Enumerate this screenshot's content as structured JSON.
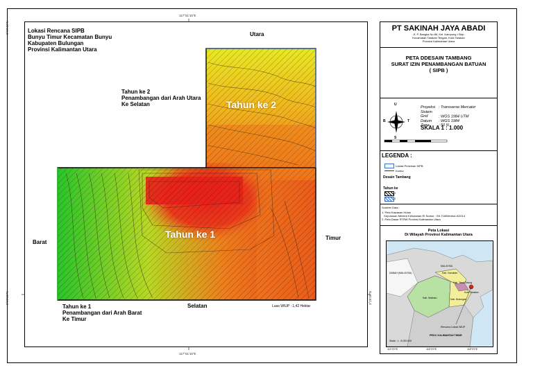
{
  "map": {
    "title_block": {
      "lines": [
        "Lokasi Rencana SIPB",
        "Bunyu Timur Kecamatan Bunyu",
        "Kabupaten Bulungan",
        "Provinsi Kalimantan Utara"
      ]
    },
    "year2": {
      "lines": [
        "Tahun ke 2",
        "Penambangan dari Arah Utara",
        "Ke Selatan"
      ],
      "big_label": "Tahun ke 2"
    },
    "year1": {
      "lines": [
        "Tahun ke 1",
        "Penambangan dari Arah Barat",
        "Ke Timur"
      ],
      "big_label": "Tahun ke 1"
    },
    "directions": {
      "north": "Utara",
      "south": "Selatan",
      "west": "Barat",
      "east": "Timur"
    },
    "area_note": "Luas WIUP : 1,42 Hektar",
    "coords": {
      "top": "117°51'15\"E",
      "bottom": "117°51'15\"E",
      "left_top": "3°29'40\"N",
      "left_bottom": "3°29'35\"N",
      "right_bottom": "3°29'35\"N"
    },
    "colors": {
      "red": "#e8211b",
      "orange": "#ef7d1c",
      "yellow": "#e8e824",
      "green": "#2bc42b",
      "boundary": "#2e6fd8"
    }
  },
  "legend_panel": {
    "company": "PT SAKINAH JAYA ABADI",
    "address": [
      "Jl. P. Bangka No.86, Kel. Kampung I Skip",
      "Kecamatan Tarakan Tengah, Kota Tarakan",
      "Provinsi Kalimantan Utara"
    ],
    "map_title": [
      "PETA DDESAIN TAMBANG",
      "SURAT IZIN PENAMBANGAN BATUAN",
      "( SIPB )"
    ],
    "projection": [
      {
        "k": "Proyeksi",
        "v": ": Transverse Mercator"
      },
      {
        "k": "Sistem Grid",
        "v": ": WGS 1984 UTM"
      },
      {
        "k": "Datum",
        "v": ": WGS 1984"
      },
      {
        "k": "Zona",
        "v": ": 50 N"
      }
    ],
    "scale": "SKALA  1 : 1.000",
    "compass": {
      "n": "U",
      "s": "S",
      "w": "B",
      "e": "T"
    },
    "legend_title": "LEGENDA  :",
    "legend_items": [
      "Lokasi Perizinan SIPB",
      "Kontur"
    ],
    "design_title": "Desain Tambang",
    "year_title": "Tahun ke",
    "year_items": [
      "1",
      "2"
    ],
    "source_title": "Sumber Data :",
    "sources": [
      "1. Peta Kawasan Hutan",
      "   Keputusan Menteri Kehutanan RI Nomor : SK.718/Menhut-II/2014",
      "2. Peta Dasar RTRW Provinsi Kalimantan Utara"
    ],
    "inset": {
      "title": [
        "Peta Lokasi",
        "Di Wilayah Provinsi Kalimantan Utara"
      ],
      "labels": [
        "MALAYSIA",
        "Kab. Malinau",
        "Kab. Nunukan",
        "Kab. Bulungan",
        "Kab. Tana Tidung",
        "Kota Tarakan",
        "Rencana Lokasi WIUP",
        "PROV. KALIMANTAN TIMUR",
        "SABAH (MALAYSIA)"
      ],
      "scale": "Skala : 1 : 8.000.000",
      "lon_ticks": [
        "114°0'0\"E",
        "116°0'0\"E",
        "118°0'0\"E"
      ]
    }
  }
}
